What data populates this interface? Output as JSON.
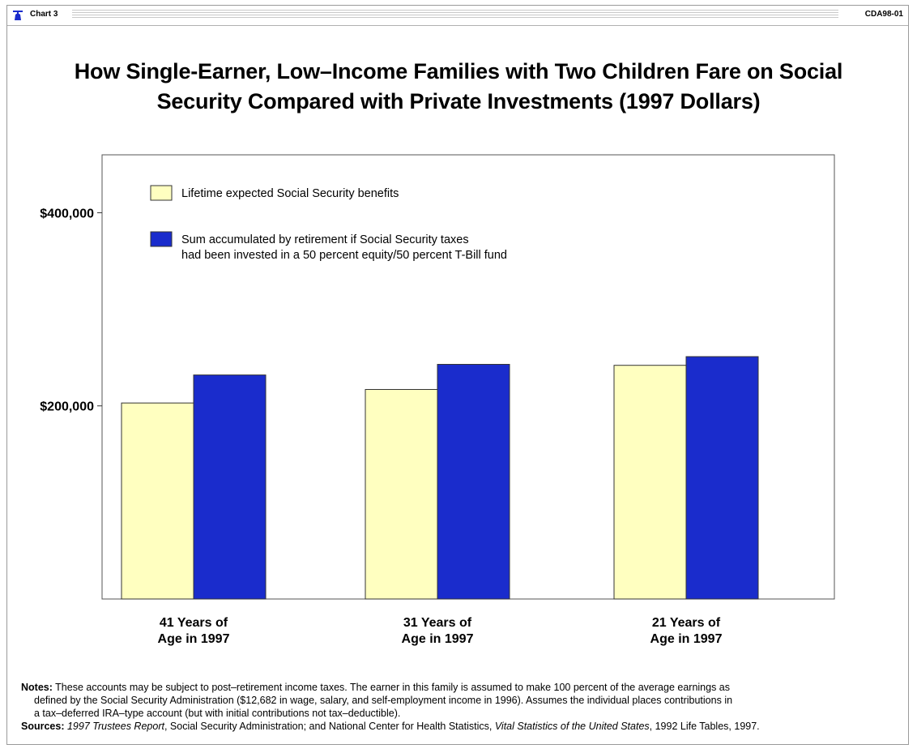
{
  "header": {
    "chart_tag": "Chart 3",
    "doc_id": "CDA98-01"
  },
  "colors": {
    "series1": "#ffffc0",
    "series2": "#1a2ccc"
  },
  "chart_data": {
    "type": "bar",
    "title_line1": "How Single-Earner, Low–Income Families with Two Children Fare on Social",
    "title_line2": "Security Compared with Private Investments (1997 Dollars)",
    "categories": [
      [
        "41 Years of",
        "Age in 1997"
      ],
      [
        "31 Years of",
        "Age in 1997"
      ],
      [
        "21 Years of",
        "Age in 1997"
      ]
    ],
    "series": [
      {
        "name": "Lifetime expected Social Security benefits",
        "name_lines": [
          "Lifetime expected Social Security benefits"
        ],
        "values": [
          203000,
          217000,
          242000
        ]
      },
      {
        "name": "Sum accumulated by retirement if Social Security taxes had been invested in a 50 percent equity/50 percent T-Bill fund",
        "name_lines": [
          "Sum accumulated by retirement if Social Security taxes",
          "had been invested in a 50 percent equity/50 percent T-Bill fund"
        ],
        "values": [
          232000,
          243000,
          251000
        ]
      }
    ],
    "yticks": [
      {
        "value": 200000,
        "label": "$200,000"
      },
      {
        "value": 400000,
        "label": "$400,000"
      }
    ],
    "ylim": [
      0,
      460000
    ],
    "grid": false,
    "legend_placement": "top-left"
  },
  "notes": {
    "notes_label": "Notes:",
    "notes_line1": "These accounts may be subject to post–retirement income taxes.  The earner in this family is assumed to make 100 percent of the average earnings as",
    "notes_line2": "defined by the Social Security Administration ($12,682 in wage, salary, and self-employment income in 1996).  Assumes the individual places contributions in",
    "notes_line3": "a tax–deferred IRA–type account (but with initial contributions not tax–deductible).",
    "sources_label": "Sources:",
    "sources_ital1": "1997 Trustees Report",
    "sources_mid": ", Social Security Administration; and National Center for Health Statistics,",
    "sources_ital2": "Vital Statistics of the United States",
    "sources_end": ", 1992 Life Tables, 1997."
  }
}
